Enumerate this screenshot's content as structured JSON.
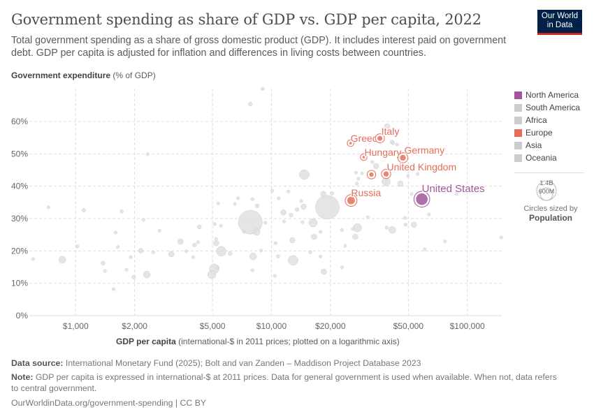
{
  "header": {
    "title": "Government spending as share of GDP vs. GDP per capita, 2022",
    "subtitle": "Total government spending as a share of gross domestic product (GDP). It includes interest paid on government debt. GDP per capita is adjusted for inflation and differences in living costs between countries.",
    "logo": "Our World in Data"
  },
  "legend": {
    "items": [
      {
        "label": "North America",
        "color": "#a2559c"
      },
      {
        "label": "South America",
        "color": "#cccccc"
      },
      {
        "label": "Africa",
        "color": "#cccccc"
      },
      {
        "label": "Europe",
        "color": "#e56e5a"
      },
      {
        "label": "Asia",
        "color": "#cccccc"
      },
      {
        "label": "Oceania",
        "color": "#cccccc"
      }
    ],
    "size_key": {
      "large": "1.4B",
      "small": "600M",
      "caption": "Circles sized by",
      "variable": "Population"
    }
  },
  "chart_data": {
    "type": "scatter",
    "title": "Government spending as share of GDP vs. GDP per capita, 2022",
    "ylabel_bold": "Government expenditure",
    "ylabel_rest": " (% of GDP)",
    "xlabel_bold": "GDP per capita",
    "xlabel_rest": " (international-$ in 2011 prices; plotted on a logarithmic axis)",
    "x_scale": "log",
    "xlim": [
      580,
      150000
    ],
    "ylim": [
      0,
      70
    ],
    "grid": true,
    "x_ticks": [
      {
        "v": 1000,
        "label": "$1,000"
      },
      {
        "v": 2000,
        "label": "$2,000"
      },
      {
        "v": 5000,
        "label": "$5,000"
      },
      {
        "v": 10000,
        "label": "$10,000"
      },
      {
        "v": 20000,
        "label": "$20,000"
      },
      {
        "v": 50000,
        "label": "$50,000"
      },
      {
        "v": 100000,
        "label": "$100,000"
      }
    ],
    "y_ticks": [
      {
        "v": 0,
        "label": "0%"
      },
      {
        "v": 10,
        "label": "10%"
      },
      {
        "v": 20,
        "label": "20%"
      },
      {
        "v": 30,
        "label": "30%"
      },
      {
        "v": 40,
        "label": "40%"
      },
      {
        "v": 50,
        "label": "50%"
      },
      {
        "v": 60,
        "label": "60%"
      }
    ],
    "size_variable": "Population (millions)",
    "highlighted": [
      {
        "name": "Greece",
        "x": 25350,
        "y": 53.3,
        "pop": 10,
        "region": "Europe"
      },
      {
        "name": "Italy",
        "x": 35800,
        "y": 54.8,
        "pop": 59,
        "region": "Europe"
      },
      {
        "name": "Hungary",
        "x": 29600,
        "y": 49.0,
        "pop": 10,
        "region": "Europe"
      },
      {
        "name": "Germany",
        "x": 46900,
        "y": 48.8,
        "pop": 84,
        "region": "Europe"
      },
      {
        "name": "United Kingdom",
        "x": 38500,
        "y": 43.8,
        "pop": 67,
        "region": "Europe"
      },
      {
        "name": "",
        "x": 32400,
        "y": 43.6,
        "pop": 48,
        "region": "Europe"
      },
      {
        "name": "Russia",
        "x": 25500,
        "y": 35.6,
        "pop": 144,
        "region": "Europe"
      },
      {
        "name": "United States",
        "x": 58600,
        "y": 36.0,
        "pop": 333,
        "region": "North America"
      }
    ],
    "other_points": [
      [
        9000,
        70.1,
        30
      ],
      [
        7800,
        65.4,
        40
      ],
      [
        2330,
        49.9,
        25
      ],
      [
        726,
        33.5,
        25
      ],
      [
        1100,
        32.6,
        35
      ],
      [
        1720,
        32.2,
        30
      ],
      [
        606,
        17.5,
        25
      ],
      [
        855,
        17.3,
        120
      ],
      [
        1020,
        21.4,
        30
      ],
      [
        1600,
        25.7,
        25
      ],
      [
        1640,
        21.2,
        25
      ],
      [
        1380,
        16.2,
        45
      ],
      [
        1410,
        13.8,
        25
      ],
      [
        1560,
        8.2,
        25
      ],
      [
        1820,
        14.2,
        25
      ],
      [
        1910,
        18.1,
        25
      ],
      [
        1980,
        11.9,
        40
      ],
      [
        2310,
        12.7,
        120
      ],
      [
        2150,
        20.1,
        60
      ],
      [
        2220,
        29.6,
        25
      ],
      [
        2490,
        19.6,
        25
      ],
      [
        2680,
        26.3,
        25
      ],
      [
        3080,
        19.0,
        77
      ],
      [
        3430,
        22.9,
        77
      ],
      [
        3670,
        19.9,
        25
      ],
      [
        3980,
        18.1,
        25
      ],
      [
        4040,
        21.8,
        40
      ],
      [
        4210,
        22.7,
        25
      ],
      [
        4280,
        27.4,
        45
      ],
      [
        5100,
        14.5,
        237
      ],
      [
        4960,
        12.7,
        174
      ],
      [
        5300,
        14.9,
        30
      ],
      [
        5540,
        19.9,
        237
      ],
      [
        6150,
        19.2,
        40
      ],
      [
        5220,
        22.4,
        77
      ],
      [
        5220,
        23.7,
        25
      ],
      [
        5130,
        28.3,
        25
      ],
      [
        5520,
        27.8,
        25
      ],
      [
        5340,
        34.7,
        25
      ],
      [
        6500,
        34.5,
        25
      ],
      [
        6750,
        36.3,
        25
      ],
      [
        8000,
        36.0,
        25
      ],
      [
        8460,
        33.9,
        40
      ],
      [
        7800,
        28.9,
        1420
      ],
      [
        8410,
        25.9,
        120
      ],
      [
        7250,
        25.9,
        25
      ],
      [
        8060,
        18.3,
        120
      ],
      [
        8000,
        14.0,
        25
      ],
      [
        8850,
        20.1,
        25
      ],
      [
        14700,
        43.6,
        237
      ],
      [
        19300,
        33.5,
        1410
      ],
      [
        16300,
        28.7,
        174
      ],
      [
        16500,
        24.4,
        77
      ],
      [
        12900,
        17.1,
        237
      ],
      [
        18500,
        13.6,
        77
      ],
      [
        11500,
        31.9,
        77
      ],
      [
        12600,
        31.1,
        40
      ],
      [
        13500,
        32.8,
        40
      ],
      [
        14600,
        33.7,
        77
      ],
      [
        14200,
        35.4,
        25
      ],
      [
        10900,
        36.3,
        25
      ],
      [
        12200,
        38.4,
        25
      ],
      [
        10100,
        38.6,
        25
      ],
      [
        18400,
        37.6,
        77
      ],
      [
        20400,
        37.8,
        30
      ],
      [
        9300,
        28.7,
        25
      ],
      [
        11600,
        29.1,
        25
      ],
      [
        14400,
        28.9,
        25
      ],
      [
        17800,
        25.9,
        25
      ],
      [
        10500,
        22.4,
        25
      ],
      [
        12800,
        23.3,
        77
      ],
      [
        15800,
        19.6,
        25
      ],
      [
        17800,
        18.3,
        25
      ],
      [
        10800,
        18.3,
        30
      ],
      [
        10400,
        12.3,
        25
      ],
      [
        22900,
        14.9,
        25
      ],
      [
        23800,
        21.6,
        25
      ],
      [
        22900,
        26.5,
        25
      ],
      [
        27500,
        27.2,
        174
      ],
      [
        26800,
        24.4,
        77
      ],
      [
        26000,
        26.8,
        25
      ],
      [
        31000,
        30.4,
        25
      ],
      [
        38800,
        27.2,
        25
      ],
      [
        41400,
        26.5,
        120
      ],
      [
        48000,
        30.2,
        25
      ],
      [
        48500,
        28.1,
        25
      ],
      [
        53400,
        28.1,
        77
      ],
      [
        63700,
        31.3,
        25
      ],
      [
        60600,
        20.5,
        25
      ],
      [
        77000,
        22.9,
        25
      ],
      [
        149000,
        24.2,
        25
      ],
      [
        88000,
        37.6,
        25
      ],
      [
        52000,
        37.6,
        25
      ],
      [
        38500,
        41.4,
        174
      ],
      [
        45500,
        40.8,
        77
      ],
      [
        49800,
        43.2,
        25
      ],
      [
        55800,
        43.8,
        25
      ],
      [
        27000,
        44.2,
        25
      ],
      [
        29000,
        44.0,
        25
      ],
      [
        27800,
        42.3,
        25
      ],
      [
        27300,
        40.8,
        25
      ],
      [
        32700,
        47.5,
        25
      ],
      [
        34200,
        46.2,
        77
      ],
      [
        39000,
        58.5,
        77
      ],
      [
        41200,
        53.7,
        40
      ],
      [
        41800,
        53.3,
        30
      ],
      [
        43800,
        52.9,
        25
      ]
    ]
  },
  "footer": {
    "source_label": "Data source:",
    "source": " International Monetary Fund (2025); Bolt and van Zanden – Maddison Project Database 2023",
    "note_label": "Note:",
    "note": " GDP per capita is expressed in international-$ at 2011 prices. Data for general government is used when available. When not, data refers to central government.",
    "url": "OurWorldinData.org/government-spending | CC BY"
  }
}
